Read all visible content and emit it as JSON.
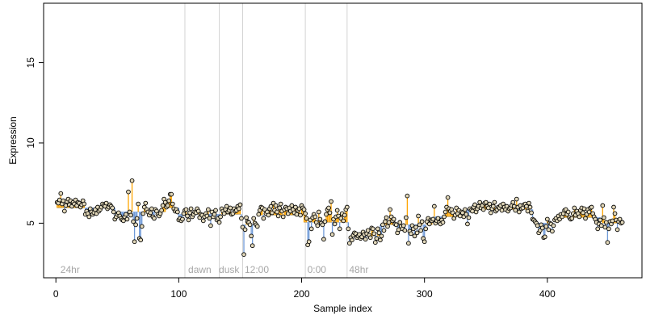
{
  "chart_data": {
    "type": "scatter",
    "title": "",
    "xlabel": "Sample index",
    "ylabel": "Expression",
    "xlim": [
      -10,
      477
    ],
    "ylim": [
      1.6,
      18.7
    ],
    "xticks": [
      0,
      100,
      200,
      300,
      400
    ],
    "yticks": [
      5,
      10,
      15
    ],
    "grid": false,
    "legend": "none",
    "colors": {
      "above_reference": "#ffa500",
      "below_reference": "#6f9ad8",
      "separator": "#d3d3d3",
      "annotation": "#a6a6a6",
      "point_stroke": "#000000",
      "point_fill": "#e0d6b8"
    },
    "separators_x": [
      105,
      133,
      152,
      203,
      237
    ],
    "annotations": [
      {
        "x": 3,
        "text": "24hr"
      },
      {
        "x": 107,
        "text": "dawn"
      },
      {
        "x": 132,
        "text": "dusk"
      },
      {
        "x": 153,
        "text": "12:00"
      },
      {
        "x": 204,
        "text": "0:00"
      },
      {
        "x": 238,
        "text": "48hr"
      }
    ],
    "segments": [
      {
        "start": 0,
        "end": 47,
        "baseline": 5.95
      },
      {
        "start": 48,
        "end": 88,
        "baseline": 5.7
      },
      {
        "start": 89,
        "end": 99,
        "baseline": 5.95
      },
      {
        "start": 100,
        "end": 150,
        "baseline": 5.55
      },
      {
        "start": 151,
        "end": 163,
        "baseline": 4.9
      },
      {
        "start": 164,
        "end": 200,
        "baseline": 5.5
      },
      {
        "start": 201,
        "end": 237,
        "baseline": 5.05
      },
      {
        "start": 238,
        "end": 262,
        "baseline": 4.2
      },
      {
        "start": 263,
        "end": 305,
        "baseline": 4.9
      },
      {
        "start": 306,
        "end": 332,
        "baseline": 5.4
      },
      {
        "start": 333,
        "end": 387,
        "baseline": 5.85
      },
      {
        "start": 388,
        "end": 404,
        "baseline": 5.0
      },
      {
        "start": 405,
        "end": 442,
        "baseline": 5.35
      },
      {
        "start": 443,
        "end": 460,
        "baseline": 5.0
      }
    ],
    "series": [
      {
        "x_start": 1,
        "values": [
          6.3,
          6.25,
          6.45,
          6.85,
          6.2,
          6.4,
          5.75,
          6.1,
          6.35,
          6.5,
          6.15,
          6.4,
          6.05,
          6.3,
          6.2,
          6.45,
          6.1,
          6.3,
          6.25,
          6.0,
          6.15,
          6.4,
          6.2,
          5.55,
          5.75,
          5.6,
          5.4,
          5.9,
          5.7,
          5.55,
          5.65,
          5.85,
          5.6,
          6.0,
          5.75,
          5.85,
          6.0,
          6.2,
          6.1,
          6.05,
          6.25,
          5.9,
          6.0,
          6.15,
          6.05,
          5.95,
          5.7,
          5.25,
          5.4,
          5.55,
          5.65,
          5.45,
          5.3,
          5.2,
          5.15,
          5.4,
          5.55,
          5.25,
          6.95,
          5.7,
          5.5,
          7.65,
          5.1,
          3.85,
          4.9,
          5.3,
          6.2,
          4.05,
          3.95,
          4.8,
          5.6,
          6.0,
          6.25,
          5.85,
          5.7,
          5.5,
          5.65,
          5.9,
          5.4,
          5.3,
          5.85,
          5.75,
          5.55,
          5.45,
          5.6,
          5.8,
          6.1,
          6.5,
          6.3,
          6.0,
          6.1,
          6.4,
          6.8,
          6.8,
          6.2,
          5.9,
          5.75,
          5.85,
          5.7,
          5.2,
          5.3,
          5.15,
          5.25,
          5.6,
          5.8,
          5.85,
          5.45,
          5.2,
          5.65,
          5.9,
          5.4,
          5.55,
          5.7,
          5.65,
          5.9,
          5.75,
          5.35,
          5.55,
          5.5,
          5.15,
          5.4,
          5.6,
          5.45,
          5.85,
          5.3,
          4.85,
          5.7,
          5.4,
          5.55,
          5.8,
          5.2,
          5.3,
          5.05,
          5.4,
          5.9,
          5.75,
          5.6,
          5.85,
          6.05,
          5.7,
          5.8,
          5.95,
          5.55,
          5.6,
          5.9,
          5.75,
          5.8,
          6.05,
          5.9,
          6.15,
          5.3,
          4.75,
          3.05,
          4.6,
          5.35,
          5.1,
          5.05,
          4.9,
          4.2,
          3.6,
          5.3,
          5.0,
          4.9,
          4.8,
          5.55,
          5.8,
          6.0,
          5.95,
          5.3,
          5.85,
          5.6,
          5.7,
          5.5,
          5.9,
          6.05,
          5.65,
          6.25,
          5.8,
          6.1,
          5.7,
          5.45,
          5.95,
          6.2,
          5.75,
          5.4,
          5.85,
          6.0,
          5.9,
          5.6,
          5.95,
          5.75,
          6.1,
          5.85,
          5.65,
          6.0,
          5.55,
          5.8,
          5.9,
          5.5,
          6.1,
          5.95,
          5.85,
          5.6,
          5.3,
          3.65,
          3.85,
          5.2,
          4.65,
          5.35,
          5.55,
          5.4,
          5.05,
          4.85,
          5.7,
          5.25,
          5.0,
          4.9,
          4.0,
          5.1,
          5.55,
          5.85,
          5.95,
          5.65,
          6.35,
          4.3,
          5.25,
          4.95,
          5.4,
          5.8,
          5.45,
          4.65,
          5.3,
          5.6,
          5.15,
          5.5,
          5.85,
          6.0,
          4.65,
          3.75,
          4.1,
          3.95,
          4.25,
          4.4,
          4.35,
          4.1,
          4.2,
          4.3,
          4.05,
          4.15,
          4.45,
          4.3,
          4.0,
          4.35,
          4.55,
          4.25,
          4.1,
          4.7,
          4.65,
          4.35,
          3.8,
          4.05,
          4.65,
          4.4,
          3.95,
          4.2,
          4.9,
          4.55,
          5.1,
          5.35,
          4.8,
          5.05,
          5.85,
          5.4,
          5.15,
          5.25,
          4.95,
          4.9,
          4.4,
          4.6,
          5.05,
          4.8,
          4.65,
          4.85,
          4.55,
          5.35,
          6.7,
          3.75,
          4.5,
          4.35,
          4.85,
          4.65,
          4.2,
          4.75,
          4.4,
          5.45,
          4.9,
          4.55,
          5.1,
          4.05,
          3.85,
          4.65,
          5.1,
          5.3,
          4.95,
          5.2,
          5.15,
          5.25,
          6.05,
          5.0,
          5.15,
          5.3,
          5.05,
          4.95,
          5.2,
          5.05,
          5.4,
          5.7,
          6.0,
          6.6,
          5.9,
          5.75,
          5.85,
          5.65,
          5.3,
          5.5,
          5.95,
          5.6,
          5.8,
          5.45,
          5.7,
          5.65,
          5.4,
          5.85,
          5.55,
          4.95,
          5.35,
          5.9,
          5.8,
          5.75,
          6.0,
          6.15,
          5.7,
          5.9,
          6.05,
          6.3,
          5.95,
          6.1,
          5.85,
          6.25,
          6.3,
          6.05,
          5.95,
          6.2,
          5.65,
          5.9,
          6.05,
          6.3,
          5.75,
          5.85,
          6.0,
          5.95,
          6.1,
          5.8,
          6.2,
          6.0,
          5.85,
          6.05,
          5.75,
          5.9,
          5.95,
          6.1,
          6.3,
          6.05,
          5.8,
          6.5,
          6.0,
          5.7,
          6.1,
          5.9,
          5.95,
          6.15,
          6.2,
          6.05,
          5.75,
          6.25,
          6.0,
          5.65,
          5.25,
          5.2,
          5.1,
          5.0,
          4.85,
          4.4,
          4.55,
          4.9,
          4.7,
          4.1,
          4.15,
          4.8,
          5.25,
          4.6,
          5.0,
          4.95,
          4.5,
          4.85,
          5.2,
          5.3,
          5.15,
          5.45,
          5.25,
          5.55,
          5.4,
          5.6,
          5.8,
          5.85,
          5.55,
          5.7,
          5.35,
          5.25,
          5.3,
          5.6,
          5.95,
          5.5,
          5.75,
          5.6,
          5.4,
          5.8,
          5.95,
          5.65,
          5.9,
          5.3,
          5.55,
          5.85,
          5.7,
          5.95,
          6.0,
          5.6,
          5.4,
          5.25,
          5.05,
          4.65,
          4.95,
          5.2,
          4.85,
          6.1,
          5.35,
          4.75,
          5.05,
          3.8,
          4.65,
          5.1,
          4.95,
          5.15,
          6.0,
          5.6,
          5.2,
          4.6,
          5.1,
          5.25,
          5.0,
          5.05
        ]
      }
    ]
  }
}
